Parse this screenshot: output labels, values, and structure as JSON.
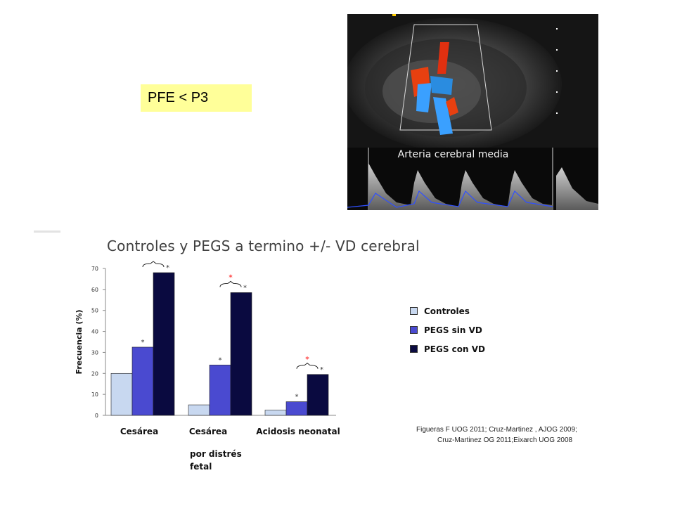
{
  "label_box": {
    "text": "PFE < P3",
    "color": "#ffff99"
  },
  "ultrasound": {
    "caption": "Arteria cerebral media"
  },
  "chart_data": {
    "type": "bar",
    "title": "Controles y PEGS a termino +/- VD cerebral",
    "ylabel": "Frecuencia (%)",
    "xlabel": "",
    "ylim": [
      0,
      70
    ],
    "yticks": [
      0,
      10,
      20,
      30,
      40,
      50,
      60,
      70
    ],
    "categories": [
      "Cesárea",
      "Cesárea",
      "Acidosis neonatal"
    ],
    "category_sublabels": [
      "",
      "por distrés fetal",
      ""
    ],
    "series": [
      {
        "name": "Controles",
        "values": [
          20,
          5,
          2.5
        ],
        "color": "#c8d8f0"
      },
      {
        "name": "PEGS sin VD",
        "values": [
          32.5,
          24,
          6.5
        ],
        "color": "#4a4ad0"
      },
      {
        "name": "PEGS con VD",
        "values": [
          68,
          58.5,
          19.5
        ],
        "color": "#0a0a40"
      }
    ],
    "annotations": {
      "star": "*",
      "significance_marks": [
        {
          "category_index": 0,
          "star_color": "#ff0000"
        },
        {
          "category_index": 1,
          "star_color": "#ff0000"
        },
        {
          "category_index": 2,
          "star_color": "#ff0000"
        }
      ]
    },
    "legend_position": "right"
  },
  "sources": [
    "Figueras F UOG 2011; Cruz-Martinez , AJOG 2009;",
    "Cruz-Martinez OG 2011;Eixarch UOG 2008"
  ]
}
